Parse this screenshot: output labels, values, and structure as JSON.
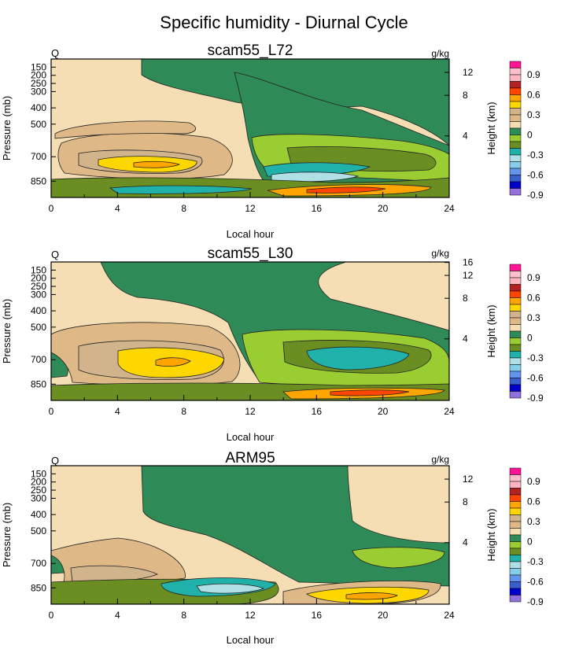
{
  "figure": {
    "title": "Specific humidity - Diurnal Cycle"
  },
  "colorbar": {
    "levels": [
      -0.9,
      -0.8,
      -0.7,
      -0.6,
      -0.5,
      -0.4,
      -0.3,
      -0.2,
      -0.1,
      0,
      0.1,
      0.2,
      0.3,
      0.4,
      0.5,
      0.6,
      0.7,
      0.8,
      0.9
    ],
    "labels": [
      "0.9",
      "0.6",
      "0.3",
      "0",
      "-0.3",
      "-0.6",
      "-0.9"
    ],
    "colors": [
      "#9370db",
      "#0000cd",
      "#3a5fcd",
      "#6495ed",
      "#87ceeb",
      "#b0e0e6",
      "#20b2aa",
      "#6b8e23",
      "#9acd32",
      "#2e8b57",
      "#f5deb3",
      "#deb887",
      "#d2b48c",
      "#ffd700",
      "#ffa500",
      "#ff4500",
      "#b22222",
      "#ffb6c1",
      "#ffc0cb",
      "#ff1493"
    ]
  },
  "chart_data": [
    {
      "type": "heatmap",
      "title": "scam55_L72",
      "left_label": "Q",
      "right_label": "g/kg",
      "xlabel": "Local hour",
      "ylabel": "Pressure (mb)",
      "y2label": "Height (km)",
      "xlim": [
        0,
        24
      ],
      "x_ticks": [
        0,
        4,
        8,
        12,
        16,
        20,
        24
      ],
      "y_ticks": [
        150,
        200,
        250,
        300,
        400,
        500,
        700,
        850
      ],
      "y2_ticks": [
        4,
        8,
        12
      ],
      "colorbar_label": "Height (km)",
      "levels": [
        -0.9,
        -0.8,
        -0.7,
        -0.6,
        -0.5,
        -0.4,
        -0.3,
        -0.2,
        -0.1,
        0,
        0.1,
        0.2,
        0.3,
        0.4,
        0.5,
        0.6,
        0.7,
        0.8,
        0.9
      ],
      "units": "g/kg"
    },
    {
      "type": "heatmap",
      "title": "scam55_L30",
      "left_label": "Q",
      "right_label": "g/kg",
      "xlabel": "Local hour",
      "ylabel": "Pressure (mb)",
      "y2label": "Height (km)",
      "xlim": [
        0,
        24
      ],
      "x_ticks": [
        0,
        4,
        8,
        12,
        16,
        20,
        24
      ],
      "y_ticks": [
        150,
        200,
        250,
        300,
        400,
        500,
        700,
        850
      ],
      "y2_ticks": [
        4,
        8,
        12,
        16
      ],
      "colorbar_label": "Height (km)",
      "levels": [
        -0.9,
        -0.8,
        -0.7,
        -0.6,
        -0.5,
        -0.4,
        -0.3,
        -0.2,
        -0.1,
        0,
        0.1,
        0.2,
        0.3,
        0.4,
        0.5,
        0.6,
        0.7,
        0.8,
        0.9
      ],
      "units": "g/kg"
    },
    {
      "type": "heatmap",
      "title": "ARM95",
      "left_label": "Q",
      "right_label": "g/kg",
      "xlabel": "Local hour",
      "ylabel": "Pressure (mb)",
      "y2label": "Height (km)",
      "xlim": [
        0,
        24
      ],
      "x_ticks": [
        0,
        4,
        8,
        12,
        16,
        20,
        24
      ],
      "y_ticks": [
        150,
        200,
        250,
        300,
        400,
        500,
        700,
        850
      ],
      "y2_ticks": [
        4,
        8,
        12
      ],
      "colorbar_label": "Height (km)",
      "levels": [
        -0.9,
        -0.8,
        -0.7,
        -0.6,
        -0.5,
        -0.4,
        -0.3,
        -0.2,
        -0.1,
        0,
        0.1,
        0.2,
        0.3,
        0.4,
        0.5,
        0.6,
        0.7,
        0.8,
        0.9
      ],
      "units": "g/kg"
    }
  ]
}
